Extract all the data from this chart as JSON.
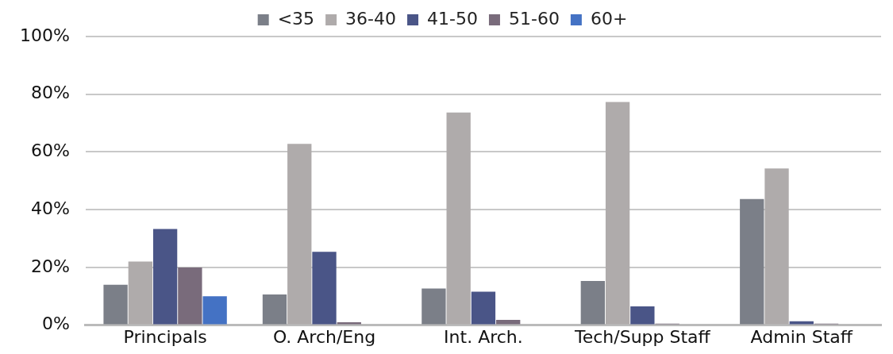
{
  "chart_data": {
    "type": "bar",
    "categories": [
      "Principals",
      "O. Arch/Eng",
      "Int. Arch.",
      "Tech/Supp Staff",
      "Admin Staff"
    ],
    "series": [
      {
        "name": "<35",
        "color": "#7b7f88",
        "values": [
          14,
          10.6,
          12.7,
          15.3,
          43.7
        ]
      },
      {
        "name": "36-40",
        "color": "#afabab",
        "values": [
          22,
          62.8,
          73.7,
          77.3,
          54.3
        ]
      },
      {
        "name": "41-50",
        "color": "#4a5587",
        "values": [
          33.3,
          25.4,
          11.6,
          6.5,
          1.3
        ]
      },
      {
        "name": "51-60",
        "color": "#796b7b",
        "values": [
          20,
          1,
          1.8,
          0.5,
          0.5
        ]
      },
      {
        "name": "60+",
        "color": "#4472c4",
        "values": [
          10,
          0,
          0,
          0,
          0
        ]
      }
    ],
    "ylim": [
      0,
      100
    ],
    "yticks": [
      {
        "value": 0,
        "label": "0%"
      },
      {
        "value": 20,
        "label": "20%"
      },
      {
        "value": 40,
        "label": "40%"
      },
      {
        "value": 60,
        "label": "60%"
      },
      {
        "value": 80,
        "label": "80%"
      },
      {
        "value": 100,
        "label": "100%"
      }
    ],
    "grid": "y",
    "legend": "top"
  }
}
